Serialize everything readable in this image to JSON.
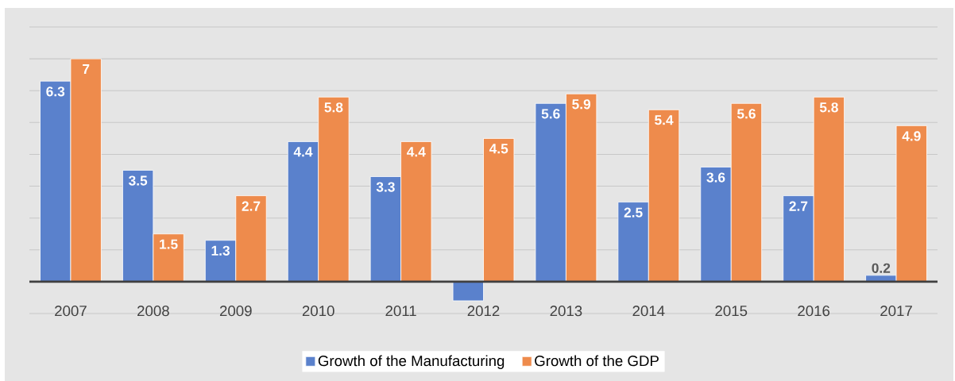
{
  "chart_data": {
    "type": "bar",
    "categories": [
      "2007",
      "2008",
      "2009",
      "2010",
      "2011",
      "2012",
      "2013",
      "2014",
      "2015",
      "2016",
      "2017"
    ],
    "series": [
      {
        "name": "Growth of the Manufacturing",
        "color": "#5a81cc",
        "values": [
          6.3,
          3.5,
          1.3,
          4.4,
          3.3,
          -0.6,
          5.6,
          2.5,
          3.6,
          2.7,
          0.2
        ],
        "value_labels": [
          "6.3",
          "3.5",
          "1.3",
          "4.4",
          "3.3",
          null,
          "5.6",
          "2.5",
          "3.6",
          "2.7",
          "0.2"
        ]
      },
      {
        "name": "Growth of the GDP",
        "color": "#ee8b4c",
        "values": [
          7,
          1.5,
          2.7,
          5.8,
          4.4,
          4.5,
          5.9,
          5.4,
          5.6,
          5.8,
          4.9
        ],
        "value_labels": [
          "7",
          "1.5",
          "2.7",
          "5.8",
          "4.4",
          "4.5",
          "5.9",
          "5.4",
          "5.6",
          "5.8",
          "4.9"
        ]
      }
    ],
    "ylim": [
      -1,
      8
    ],
    "yticks": [
      {
        "value": -1,
        "label": null
      },
      {
        "value": 0,
        "label": null
      },
      {
        "value": 1,
        "label": null
      },
      {
        "value": 2,
        "label": null
      },
      {
        "value": 3,
        "label": null
      },
      {
        "value": 4,
        "label": null
      },
      {
        "value": 5,
        "label": null
      },
      {
        "value": 6,
        "label": null
      },
      {
        "value": 7,
        "label": null
      },
      {
        "value": 8,
        "label": null
      }
    ],
    "grid": "y",
    "legend": "bottom",
    "tick_labels": "x"
  }
}
